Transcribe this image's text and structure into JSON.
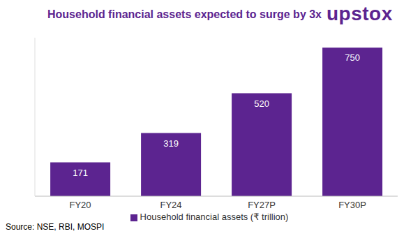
{
  "chart_data": {
    "type": "bar",
    "title": "Household financial assets expected to surge by 3x",
    "logo": "upstox",
    "source": "Source: NSE, RBI, MOSPI",
    "categories": [
      "FY20",
      "FY24",
      "FY27P",
      "FY30P"
    ],
    "series": [
      {
        "name": "Household financial assets (₹ trillion)",
        "color": "#5c2490",
        "values": [
          171,
          319,
          520,
          750
        ]
      }
    ],
    "ylim": [
      0,
      800
    ],
    "grid": false,
    "legend": "bottom",
    "data_labels": true,
    "tick_labels": "x"
  }
}
